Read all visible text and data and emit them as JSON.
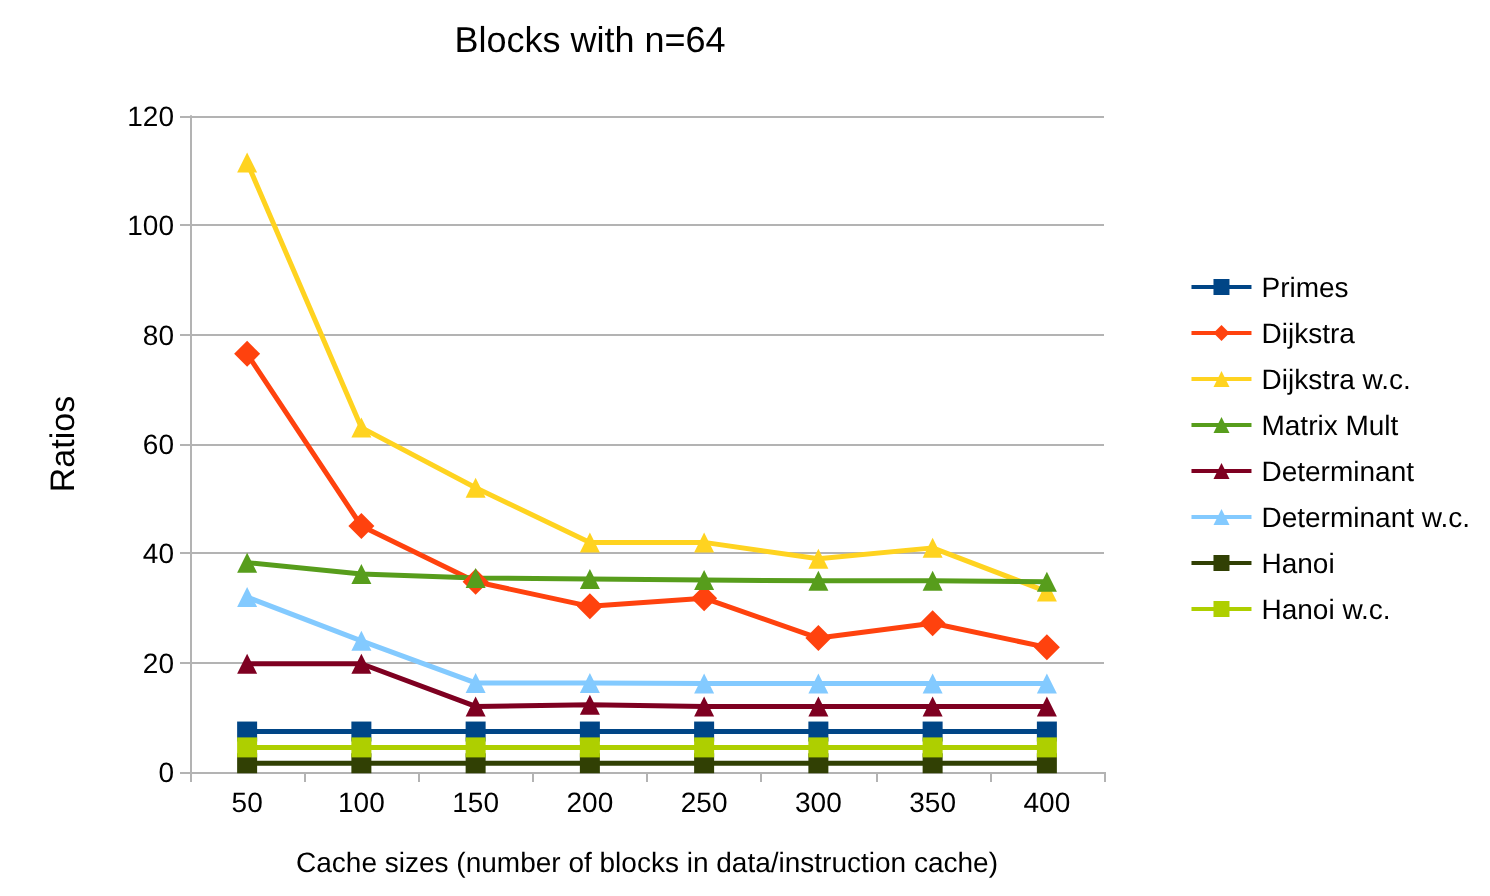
{
  "chart_data": {
    "type": "line",
    "title": "Blocks with n=64",
    "xlabel": "Cache sizes (number of blocks in data/instruction cache)",
    "ylabel": "Ratios",
    "categories": [
      "50",
      "100",
      "150",
      "200",
      "250",
      "300",
      "350",
      "400"
    ],
    "ylim": [
      0,
      120
    ],
    "yticks": [
      0,
      20,
      40,
      60,
      80,
      100,
      120
    ],
    "grid": "y",
    "legend": "right",
    "line_style": "solid",
    "series": [
      {
        "name": "Primes",
        "color": "#004586",
        "marker": "square",
        "values": [
          7.4,
          7.4,
          7.4,
          7.4,
          7.4,
          7.4,
          7.4,
          7.4
        ]
      },
      {
        "name": "Dijkstra",
        "color": "#ff420e",
        "marker": "diamond",
        "values": [
          76.5,
          45,
          34.8,
          30.3,
          31.8,
          24.5,
          27.2,
          22.8
        ]
      },
      {
        "name": "Dijkstra w.c.",
        "color": "#ffd320",
        "marker": "triangle",
        "values": [
          111.5,
          63,
          52,
          42,
          42,
          39,
          41,
          33
        ]
      },
      {
        "name": "Matrix Mult",
        "color": "#579d1c",
        "marker": "triangle",
        "values": [
          38.3,
          36.2,
          35.5,
          35.3,
          35.1,
          35,
          35,
          34.8
        ]
      },
      {
        "name": "Determinant",
        "color": "#7e0021",
        "marker": "triangle",
        "values": [
          19.8,
          19.8,
          12,
          12.3,
          12,
          12,
          12,
          12
        ]
      },
      {
        "name": "Determinant w.c.",
        "color": "#83caff",
        "marker": "triangle",
        "values": [
          32,
          24,
          16.3,
          16.3,
          16.2,
          16.2,
          16.2,
          16.2
        ]
      },
      {
        "name": "Hanoi",
        "color": "#314004",
        "marker": "square",
        "values": [
          1.6,
          1.6,
          1.6,
          1.6,
          1.6,
          1.6,
          1.6,
          1.6
        ]
      },
      {
        "name": "Hanoi w.c.",
        "color": "#aecf00",
        "marker": "square",
        "values": [
          4.5,
          4.5,
          4.5,
          4.5,
          4.5,
          4.5,
          4.5,
          4.5
        ]
      }
    ]
  }
}
